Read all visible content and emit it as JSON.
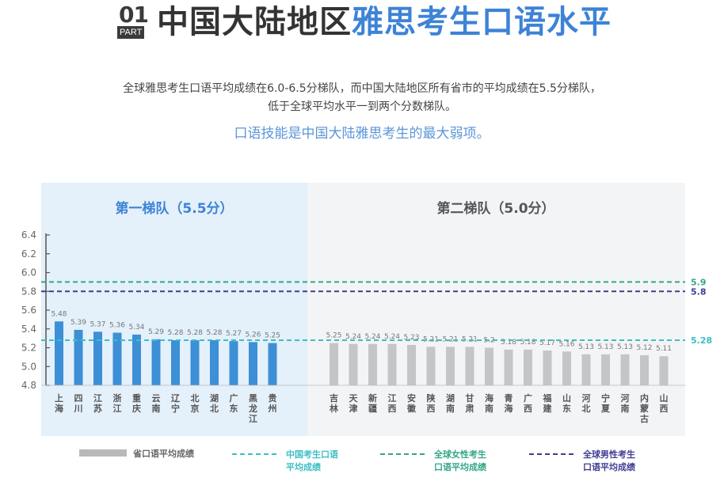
{
  "header": {
    "part_number": "01",
    "part_label": "PART",
    "title_main": "中国大陆地区",
    "title_accent": "雅思考生口语水平"
  },
  "description": {
    "line1": "全球雅思考生口语平均成绩在6.0-6.5分梯队，而中国大陆地区所有省市的平均成绩在5.5分梯队，",
    "line2": "低于全球平均水平一到两个分数梯队。",
    "highlight": "口语技能是中国大陆雅思考生的最大弱项。"
  },
  "colors": {
    "accent_blue": "#3d83d6",
    "tier1_bg": "#e4f0fa",
    "tier2_bg": "#f3f4f6",
    "tier1_bar": "#3d8fd6",
    "tier2_bar": "#c4c5c7",
    "china_line": "#3bbfc6",
    "female_line": "#35a589",
    "male_line": "#3f3d93"
  },
  "chart_data": {
    "type": "bar",
    "ylim": [
      4.8,
      6.4
    ],
    "yticks": [
      "4.8",
      "5.0",
      "5.2",
      "5.4",
      "5.6",
      "5.8",
      "6.0",
      "6.2",
      "6.4"
    ],
    "tiers": [
      {
        "label": "第一梯队（5.5分）",
        "categories": [
          "上海",
          "四川",
          "江苏",
          "浙江",
          "重庆",
          "云南",
          "辽宁",
          "北京",
          "湖北",
          "广东",
          "黑龙江",
          "贵州"
        ],
        "values": [
          5.48,
          5.39,
          5.37,
          5.36,
          5.34,
          5.29,
          5.28,
          5.28,
          5.28,
          5.27,
          5.26,
          5.25
        ],
        "value_labels": [
          "5.48",
          "5.39",
          "5.37",
          "5.36",
          "5.34",
          "5.29",
          "5.28",
          "5.28",
          "5.28",
          "5.27",
          "5.26",
          "5.25"
        ]
      },
      {
        "label": "第二梯队（5.0分）",
        "categories": [
          "吉林",
          "天津",
          "新疆",
          "江西",
          "安徽",
          "陕西",
          "湖南",
          "甘肃",
          "海南",
          "青海",
          "广西",
          "福建",
          "山东",
          "河北",
          "宁夏",
          "河南",
          "内蒙古",
          "山西"
        ],
        "values": [
          5.25,
          5.24,
          5.24,
          5.24,
          5.23,
          5.21,
          5.21,
          5.21,
          5.2,
          5.18,
          5.18,
          5.17,
          5.16,
          5.13,
          5.13,
          5.13,
          5.12,
          5.11
        ],
        "value_labels": [
          "5.25",
          "5.24",
          "5.24",
          "5.24",
          "5.23",
          "5.21",
          "5.21",
          "5.21",
          "5.2",
          "5.18",
          "5.18",
          "5.17",
          "5.16",
          "5.13",
          "5.13",
          "5.13",
          "5.12",
          "5.11"
        ]
      }
    ],
    "reference_lines": [
      {
        "name": "全球女性考生口语平均成绩",
        "value": 5.9,
        "label": "5.9",
        "color": "#35a589"
      },
      {
        "name": "全球男性考生口语平均成绩",
        "value": 5.8,
        "label": "5.8",
        "color": "#3f3d93"
      },
      {
        "name": "中国考生口语平均成绩",
        "value": 5.28,
        "label": "5.28",
        "color": "#3bbfc6"
      }
    ],
    "legend": [
      {
        "kind": "bar",
        "line1": "省口语平均成绩",
        "line2": "",
        "color": "#b8b9bb"
      },
      {
        "kind": "line",
        "line1": "中国考生口语",
        "line2": "平均成绩",
        "color": "#3bbfc6"
      },
      {
        "kind": "line",
        "line1": "全球女性考生",
        "line2": "口语平均成绩",
        "color": "#35a589"
      },
      {
        "kind": "line",
        "line1": "全球男性考生",
        "line2": "口语平均成绩",
        "color": "#3f3d93"
      }
    ]
  }
}
